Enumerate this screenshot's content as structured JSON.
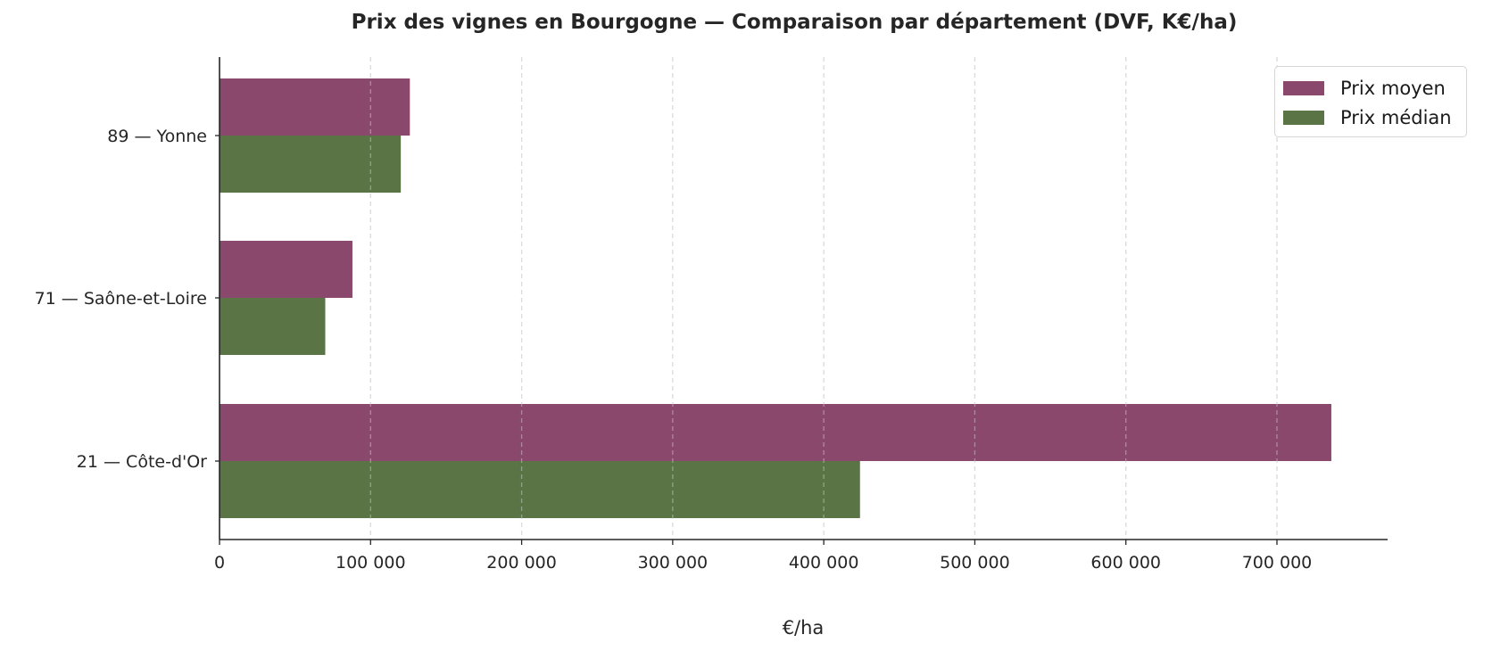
{
  "chart_data": {
    "type": "bar",
    "orientation": "horizontal",
    "title": "Prix des vignes en Bourgogne — Comparaison par département (DVF, K€/ha)",
    "xlabel": "€/ha",
    "ylabel": "",
    "categories": [
      "89 — Yonne",
      "71 — Saône-et-Loire",
      "21 — Côte-d'Or"
    ],
    "series": [
      {
        "name": "Prix moyen",
        "color": "#8a486d",
        "values": [
          126000,
          88000,
          736000
        ]
      },
      {
        "name": "Prix médian",
        "color": "#5a7446",
        "values": [
          120000,
          70000,
          424000
        ]
      }
    ],
    "xlim": [
      0,
      773000
    ],
    "xticks": [
      0,
      100000,
      200000,
      300000,
      400000,
      500000,
      600000,
      700000
    ],
    "xtick_labels": [
      "0",
      "100 000",
      "200 000",
      "300 000",
      "400 000",
      "500 000",
      "600 000",
      "700 000"
    ],
    "grid": {
      "x": true,
      "y": false,
      "style": "dashed",
      "color": "#dcdcdc"
    },
    "legend_position": "upper right"
  },
  "legend": {
    "items": [
      {
        "label": "Prix moyen",
        "color": "#8a486d"
      },
      {
        "label": "Prix médian",
        "color": "#5a7446"
      }
    ]
  }
}
